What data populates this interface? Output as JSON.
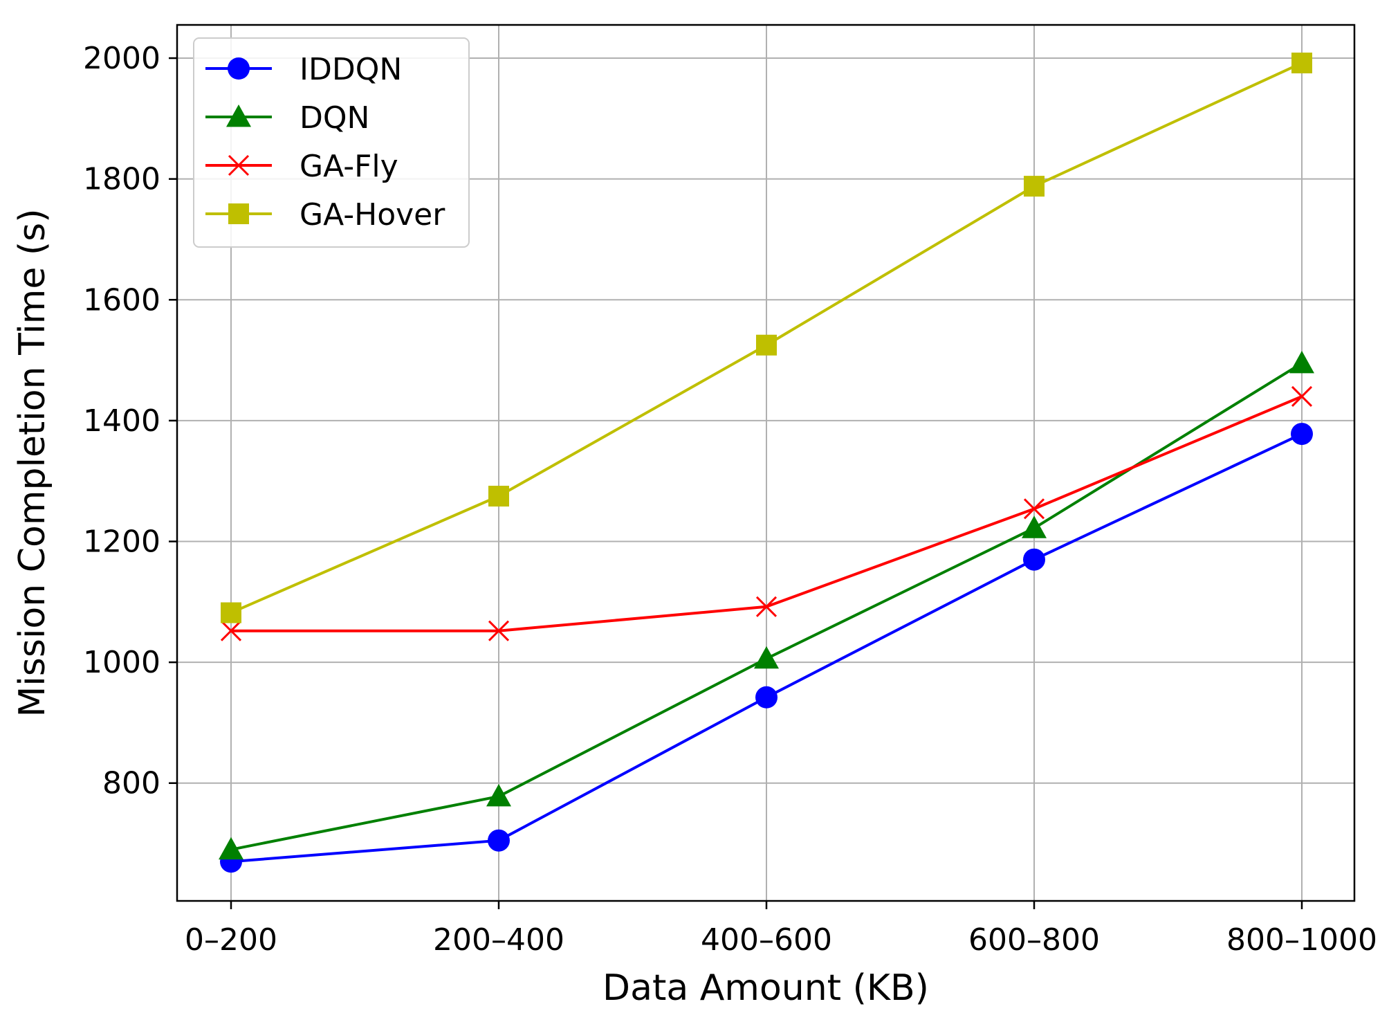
{
  "chart_data": {
    "type": "line",
    "xlabel": "Data Amount (KB)",
    "ylabel": "Mission Completion Time (s)",
    "categories": [
      "0–200",
      "200–400",
      "400–600",
      "600–800",
      "800–1000"
    ],
    "ylim": [
      605,
      2055
    ],
    "yticks": [
      800,
      1000,
      1200,
      1400,
      1600,
      1800,
      2000
    ],
    "grid": true,
    "legend_position": "top-left",
    "series": [
      {
        "name": "IDDQN",
        "color": "#0000ff",
        "marker": "circle",
        "values": [
          670,
          705,
          942,
          1170,
          1378
        ]
      },
      {
        "name": "DQN",
        "color": "#008000",
        "marker": "triangle",
        "values": [
          690,
          778,
          1006,
          1222,
          1495
        ]
      },
      {
        "name": "GA-Fly",
        "color": "#ff0000",
        "marker": "x",
        "values": [
          1052,
          1052,
          1092,
          1254,
          1440
        ]
      },
      {
        "name": "GA-Hover",
        "color": "#bfbf00",
        "marker": "square",
        "values": [
          1082,
          1275,
          1525,
          1788,
          1992
        ]
      }
    ]
  }
}
